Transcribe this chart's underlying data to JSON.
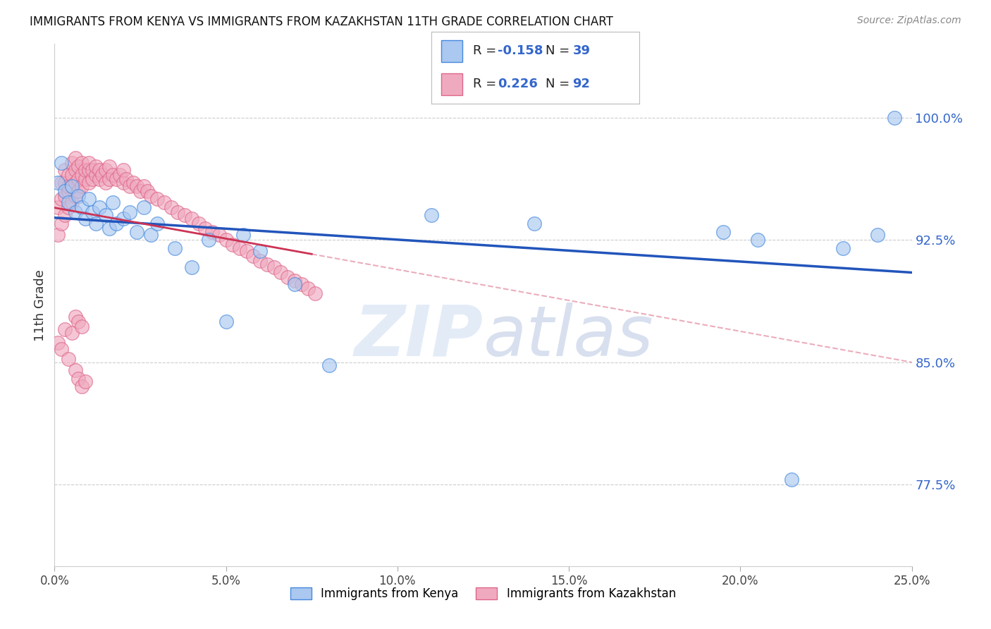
{
  "title": "IMMIGRANTS FROM KENYA VS IMMIGRANTS FROM KAZAKHSTAN 11TH GRADE CORRELATION CHART",
  "source": "Source: ZipAtlas.com",
  "ylabel": "11th Grade",
  "xlim": [
    0.0,
    0.25
  ],
  "ylim": [
    0.725,
    1.045
  ],
  "ytick_labels": [
    "77.5%",
    "85.0%",
    "92.5%",
    "100.0%"
  ],
  "ytick_values": [
    0.775,
    0.85,
    0.925,
    1.0
  ],
  "xtick_labels": [
    "0.0%",
    "5.0%",
    "10.0%",
    "15.0%",
    "20.0%",
    "25.0%"
  ],
  "xtick_values": [
    0.0,
    0.05,
    0.1,
    0.15,
    0.2,
    0.25
  ],
  "legend_label1": "Immigrants from Kenya",
  "legend_label2": "Immigrants from Kazakhstan",
  "R1": -0.158,
  "N1": 39,
  "R2": 0.226,
  "N2": 92,
  "color_kenya": "#aac8f0",
  "color_kazakhstan": "#f0aac0",
  "edge_color_kenya": "#4488dd",
  "edge_color_kazakhstan": "#dd6688",
  "line_color_kenya": "#2255bb",
  "line_color_kazakhstan": "#cc3355",
  "kenya_x": [
    0.001,
    0.002,
    0.003,
    0.004,
    0.005,
    0.006,
    0.007,
    0.008,
    0.009,
    0.01,
    0.011,
    0.012,
    0.013,
    0.015,
    0.016,
    0.017,
    0.018,
    0.02,
    0.022,
    0.024,
    0.026,
    0.028,
    0.03,
    0.035,
    0.04,
    0.045,
    0.05,
    0.055,
    0.06,
    0.07,
    0.08,
    0.11,
    0.14,
    0.195,
    0.205,
    0.215,
    0.23,
    0.24,
    0.245
  ],
  "kenya_y": [
    0.96,
    0.972,
    0.955,
    0.948,
    0.958,
    0.942,
    0.952,
    0.945,
    0.938,
    0.95,
    0.942,
    0.935,
    0.945,
    0.94,
    0.932,
    0.948,
    0.935,
    0.938,
    0.942,
    0.93,
    0.945,
    0.928,
    0.935,
    0.92,
    0.908,
    0.925,
    0.875,
    0.928,
    0.918,
    0.898,
    0.848,
    0.94,
    0.935,
    0.93,
    0.925,
    0.778,
    0.92,
    0.928,
    1.0
  ],
  "kazakhstan_x": [
    0.001,
    0.001,
    0.002,
    0.002,
    0.002,
    0.003,
    0.003,
    0.003,
    0.003,
    0.004,
    0.004,
    0.004,
    0.004,
    0.005,
    0.005,
    0.005,
    0.005,
    0.006,
    0.006,
    0.006,
    0.006,
    0.007,
    0.007,
    0.007,
    0.008,
    0.008,
    0.008,
    0.009,
    0.009,
    0.01,
    0.01,
    0.01,
    0.011,
    0.011,
    0.012,
    0.012,
    0.013,
    0.013,
    0.014,
    0.015,
    0.015,
    0.016,
    0.016,
    0.017,
    0.018,
    0.019,
    0.02,
    0.02,
    0.021,
    0.022,
    0.023,
    0.024,
    0.025,
    0.026,
    0.027,
    0.028,
    0.03,
    0.032,
    0.034,
    0.036,
    0.038,
    0.04,
    0.042,
    0.044,
    0.046,
    0.048,
    0.05,
    0.052,
    0.054,
    0.056,
    0.058,
    0.06,
    0.062,
    0.064,
    0.066,
    0.068,
    0.07,
    0.072,
    0.074,
    0.076,
    0.001,
    0.002,
    0.003,
    0.004,
    0.005,
    0.006,
    0.006,
    0.007,
    0.007,
    0.008,
    0.008,
    0.009
  ],
  "kazakhstan_y": [
    0.928,
    0.945,
    0.935,
    0.95,
    0.96,
    0.94,
    0.952,
    0.96,
    0.968,
    0.945,
    0.955,
    0.965,
    0.958,
    0.948,
    0.958,
    0.965,
    0.972,
    0.952,
    0.96,
    0.968,
    0.975,
    0.955,
    0.962,
    0.97,
    0.958,
    0.965,
    0.972,
    0.962,
    0.968,
    0.96,
    0.968,
    0.972,
    0.962,
    0.968,
    0.965,
    0.97,
    0.962,
    0.968,
    0.965,
    0.96,
    0.968,
    0.962,
    0.97,
    0.965,
    0.962,
    0.965,
    0.96,
    0.968,
    0.962,
    0.958,
    0.96,
    0.958,
    0.955,
    0.958,
    0.955,
    0.952,
    0.95,
    0.948,
    0.945,
    0.942,
    0.94,
    0.938,
    0.935,
    0.932,
    0.93,
    0.928,
    0.925,
    0.922,
    0.92,
    0.918,
    0.915,
    0.912,
    0.91,
    0.908,
    0.905,
    0.902,
    0.9,
    0.898,
    0.895,
    0.892,
    0.862,
    0.858,
    0.87,
    0.852,
    0.868,
    0.845,
    0.878,
    0.84,
    0.875,
    0.835,
    0.872,
    0.838
  ],
  "watermark_zip": "ZIP",
  "watermark_atlas": "atlas",
  "background_color": "#ffffff",
  "grid_color": "#cccccc"
}
